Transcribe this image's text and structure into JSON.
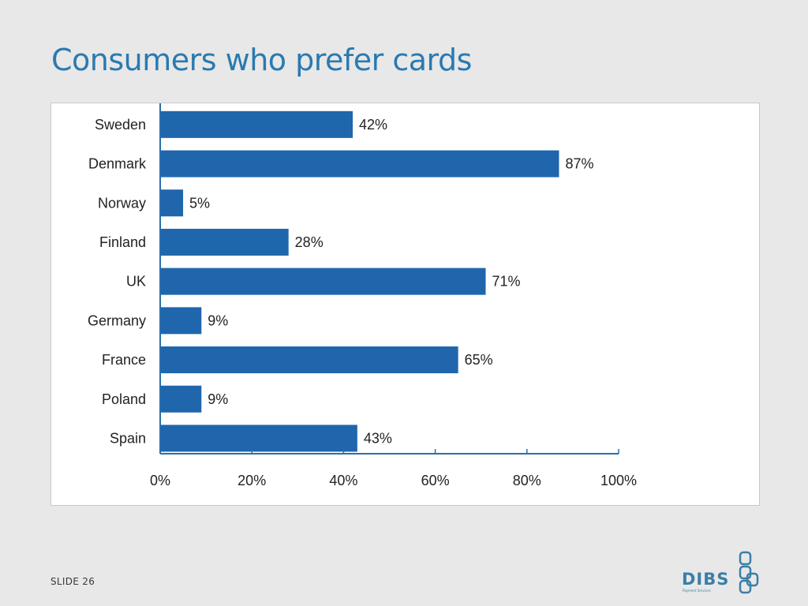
{
  "slide": {
    "title": "Consumers who prefer cards",
    "slide_number": "SLIDE 26",
    "logo_text": "DIBS",
    "logo_subtext": "Payment Services"
  },
  "colors": {
    "title": "#2a7ab0",
    "bar": "#1f66ad",
    "axis": "#2a6fae",
    "logo": "#3a7fa6"
  },
  "chart_data": {
    "type": "bar",
    "orientation": "horizontal",
    "title": "",
    "xlabel": "",
    "ylabel": "",
    "categories": [
      "Sweden",
      "Denmark",
      "Norway",
      "Finland",
      "UK",
      "Germany",
      "France",
      "Poland",
      "Spain"
    ],
    "values": [
      42,
      87,
      5,
      28,
      71,
      9,
      65,
      9,
      43
    ],
    "data_labels": [
      "42%",
      "87%",
      "5%",
      "28%",
      "71%",
      "9%",
      "65%",
      "9%",
      "43%"
    ],
    "xlim": [
      0,
      100
    ],
    "ticks": [
      0,
      20,
      40,
      60,
      80,
      100
    ],
    "tick_labels": [
      "0%",
      "20%",
      "40%",
      "60%",
      "80%",
      "100%"
    ],
    "grid": false,
    "legend": "none"
  }
}
